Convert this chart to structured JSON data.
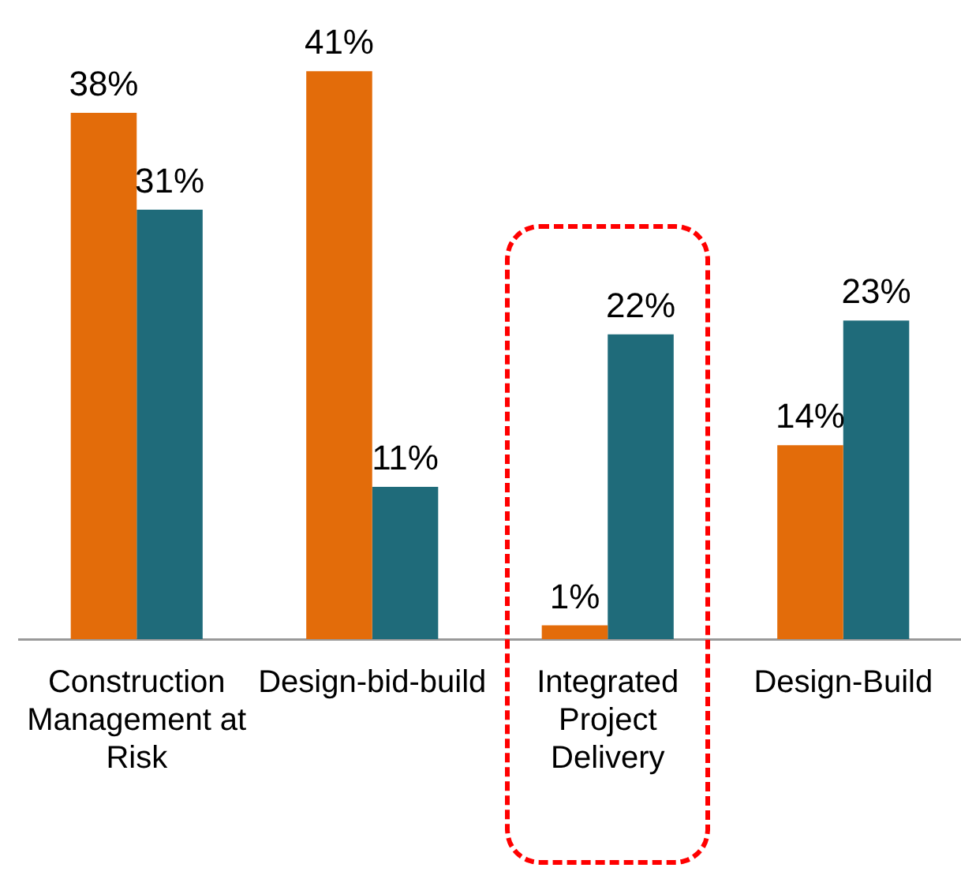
{
  "chart_data": {
    "type": "bar",
    "categories": [
      "Construction Management at Risk",
      "Design-bid-build",
      "Integrated Project Delivery",
      "Design-Build"
    ],
    "series": [
      {
        "color": "#e36c0a",
        "values": [
          38,
          41,
          1,
          14
        ],
        "value_labels": [
          "38%",
          "41%",
          "1%",
          "14%"
        ]
      },
      {
        "color": "#1f6b7a",
        "values": [
          31,
          11,
          22,
          23
        ],
        "value_labels": [
          "31%",
          "11%",
          "22%",
          "23%"
        ]
      }
    ],
    "grid": false,
    "legend": false
  }
}
